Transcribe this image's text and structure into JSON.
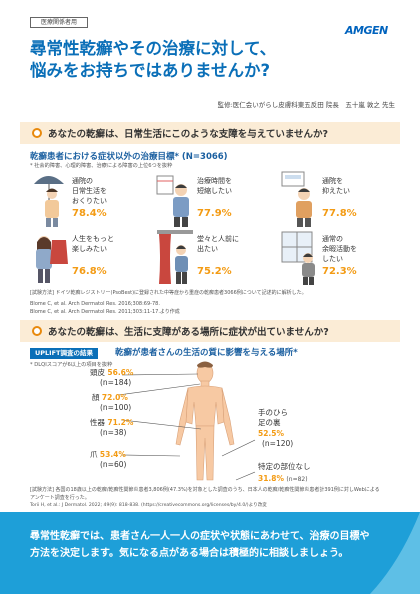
{
  "header": {
    "tag": "医療関係者用",
    "logo": "AMGEN",
    "title_line1": "尋常性乾癬やその治療に対して、",
    "title_line2": "悩みをお持ちではありませんか?",
    "supervisor": "監修:医仁会いがらし皮膚科東五反田 院長　五十嵐 敦之 先生"
  },
  "section1": {
    "heading": "あなたの乾癬は、日常生活にこのような支障を与えていませんか?",
    "subtitle": "乾癬患者における症状以外の治療目標* (N=3066)",
    "note": "* 社会的障害、心理的障害、治療による障害の上位6つを抜粋",
    "items": [
      {
        "label_line1": "通院の",
        "label_line2": "日常生活を",
        "label_line3": "おくりたい",
        "pct": "78.4%",
        "icon": "woman-umbrella-icon"
      },
      {
        "label_line1": "治療時間を",
        "label_line2": "短縮したい",
        "label_line3": "",
        "pct": "77.9%",
        "icon": "man-calendar-icon"
      },
      {
        "label_line1": "通院を",
        "label_line2": "抑えたい",
        "label_line3": "",
        "pct": "77.8%",
        "icon": "man-clinic-icon"
      },
      {
        "label_line1": "人生をもっと",
        "label_line2": "楽しみたい",
        "label_line3": "",
        "pct": "76.8%",
        "icon": "woman-clothes-icon"
      },
      {
        "label_line1": "堂々と人前に",
        "label_line2": "出たい",
        "label_line3": "",
        "pct": "75.2%",
        "icon": "person-curtain-icon"
      },
      {
        "label_line1": "通常の",
        "label_line2": "余暇活動を",
        "label_line3": "したい",
        "pct": "72.3%",
        "icon": "man-window-icon"
      }
    ],
    "method": "[試験方法] ドイツ乾癬レジストリー(PsoBest)に登録された中等症から重症の乾癬患者3066例について記述的に解析した。",
    "ref1": "Blome C, et al. Arch Dermatol Res. 2016;308:69-78.",
    "ref2": "Blome C, et al. Arch Dermatol Res. 2011;303:11-17.より作成"
  },
  "section2": {
    "heading": "あなたの乾癬は、生活に支障がある場所に症状が出ていませんか?",
    "badge": "UPLIFT調査の結果",
    "title": "乾癬が患者さんの生活の質に影響を与える場所*",
    "note": "* DLQIスコアが6以上の項目を抜粋",
    "sites": [
      {
        "name": "頭皮",
        "pct": "56.6%",
        "n": "(n=184)"
      },
      {
        "name": "顔",
        "pct": "72.0%",
        "n": "(n=100)"
      },
      {
        "name": "性器",
        "pct": "71.2%",
        "n": "(n=38)"
      },
      {
        "name": "爪",
        "pct": "53.4%",
        "n": "(n=60)"
      },
      {
        "name_line1": "手のひら",
        "name_line2": "足の裏",
        "pct": "52.5%",
        "n": "(n=120)"
      },
      {
        "name_line1": "特定の部位なし",
        "pct": "31.8%",
        "n": "(n=82)"
      }
    ],
    "method_line1": "[試験方法] 各国の18歳以上の乾癬/乾癬性関節炎患者3,806例(47.3%)を対象とした調査のうち、日本人の乾癬/乾癬性関節炎患者計391例に対しWebによる",
    "method_line2": "アンケート調査を行った。",
    "ref1": "Torii H, et al.: J Dermatol. 2022; 49(9): 818-838. (https://creativecommons.org/licenses/by/4.0/)より改変",
    "ref2": "本研究はAmgen社の資金提供により実施されました。著者にはAmgen社の社員が含まれています。"
  },
  "footer": {
    "line1": "尋常性乾癬では、患者さん一人一人の症状や状態にあわせて、治療の目標や",
    "line2": "方法を決定します。気になる点がある場合は積極的に相談しましょう。"
  },
  "colors": {
    "accent_orange": "#f39b14",
    "title_blue": "#0a6fb8",
    "footer_blue": "#1e9fd8",
    "section_bg": "#fbecd6"
  }
}
